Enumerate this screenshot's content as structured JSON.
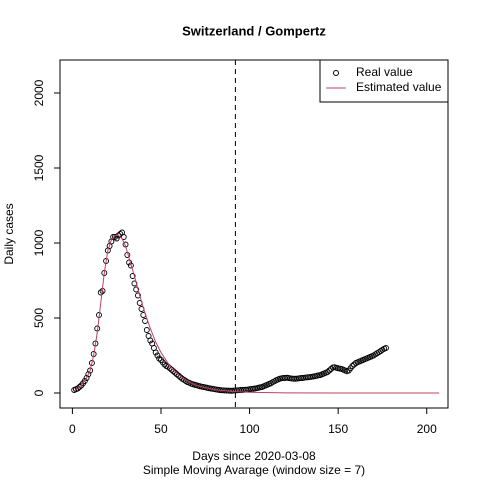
{
  "chart_data": {
    "type": "scatter",
    "title": "Switzerland / Gompertz",
    "x_label": "Days since 2020-03-08",
    "subtitle": "Simple Moving Avarage (window size = 7)",
    "y_label": "Daily cases",
    "xlim": [
      -7,
      212
    ],
    "ylim": [
      -100,
      2220
    ],
    "xticks": [
      0,
      50,
      100,
      150,
      200
    ],
    "yticks": [
      0,
      500,
      1000,
      1500,
      2000
    ],
    "vline_x": 92,
    "legend": "top-right",
    "series": [
      {
        "name": "Real value",
        "color": "#000000",
        "marker": "circle",
        "x": [
          1,
          2,
          3,
          4,
          5,
          6,
          7,
          8,
          9,
          10,
          11,
          12,
          13,
          14,
          15,
          16,
          17,
          18,
          19,
          20,
          21,
          22,
          23,
          24,
          25,
          26,
          27,
          28,
          29,
          30,
          31,
          32,
          33,
          34,
          35,
          36,
          37,
          38,
          39,
          40,
          41,
          42,
          43,
          44,
          45,
          46,
          47,
          48,
          49,
          50,
          51,
          52,
          53,
          54,
          55,
          56,
          57,
          58,
          59,
          60,
          61,
          62,
          63,
          64,
          65,
          66,
          67,
          68,
          69,
          70,
          71,
          72,
          73,
          74,
          75,
          76,
          77,
          78,
          79,
          80,
          81,
          82,
          83,
          84,
          85,
          86,
          87,
          88,
          89,
          90,
          91,
          92,
          93,
          94,
          95,
          96,
          97,
          98,
          99,
          100,
          101,
          102,
          103,
          104,
          105,
          106,
          107,
          108,
          109,
          110,
          111,
          112,
          113,
          114,
          115,
          116,
          117,
          118,
          119,
          120,
          121,
          122,
          123,
          124,
          125,
          126,
          127,
          128,
          129,
          130,
          131,
          132,
          133,
          134,
          135,
          136,
          137,
          138,
          139,
          140,
          141,
          142,
          143,
          144,
          145,
          146,
          147,
          148,
          149,
          150,
          151,
          152,
          153,
          154,
          155,
          156,
          157,
          158,
          159,
          160,
          161,
          162,
          163,
          164,
          165,
          166,
          167,
          168,
          169,
          170,
          171,
          172,
          173,
          174,
          175,
          176,
          177
        ],
        "values": [
          20,
          25,
          30,
          40,
          50,
          65,
          80,
          100,
          125,
          150,
          200,
          260,
          330,
          430,
          520,
          670,
          680,
          800,
          880,
          950,
          980,
          1010,
          1040,
          1040,
          1030,
          1050,
          1060,
          1070,
          1040,
          990,
          920,
          870,
          850,
          780,
          730,
          690,
          650,
          600,
          560,
          520,
          480,
          420,
          380,
          350,
          330,
          300,
          270,
          250,
          230,
          220,
          205,
          190,
          180,
          175,
          165,
          155,
          145,
          135,
          125,
          115,
          105,
          95,
          88,
          80,
          72,
          68,
          62,
          58,
          55,
          52,
          48,
          45,
          42,
          40,
          38,
          35,
          32,
          30,
          28,
          26,
          24,
          22,
          20,
          19,
          18,
          17,
          16,
          16,
          15,
          15,
          16,
          17,
          18,
          19,
          20,
          20,
          21,
          22,
          23,
          25,
          27,
          28,
          30,
          32,
          35,
          38,
          40,
          45,
          50,
          55,
          60,
          65,
          72,
          78,
          85,
          90,
          95,
          98,
          100,
          100,
          102,
          100,
          98,
          96,
          95,
          95,
          96,
          98,
          100,
          100,
          102,
          104,
          105,
          106,
          108,
          110,
          112,
          115,
          118,
          120,
          125,
          130,
          135,
          140,
          150,
          160,
          170,
          172,
          168,
          165,
          162,
          160,
          155,
          150,
          145,
          150,
          165,
          180,
          190,
          200,
          205,
          210,
          215,
          220,
          225,
          230,
          235,
          240,
          245,
          250,
          258,
          265,
          272,
          280,
          288,
          295,
          300
        ]
      },
      {
        "name": "Estimated value",
        "color": "#c04060",
        "marker": "line",
        "x": [
          1,
          5,
          8,
          10,
          12,
          14,
          16,
          18,
          20,
          22,
          24,
          26,
          28,
          30,
          32,
          35,
          38,
          41,
          44,
          47,
          50,
          55,
          60,
          65,
          70,
          80,
          90,
          100,
          120,
          150,
          180,
          207
        ],
        "values": [
          15,
          50,
          100,
          150,
          250,
          400,
          600,
          800,
          950,
          1020,
          1050,
          1050,
          1030,
          980,
          900,
          780,
          650,
          530,
          430,
          340,
          270,
          180,
          120,
          80,
          50,
          22,
          10,
          5,
          1,
          0,
          0,
          0
        ]
      }
    ]
  }
}
